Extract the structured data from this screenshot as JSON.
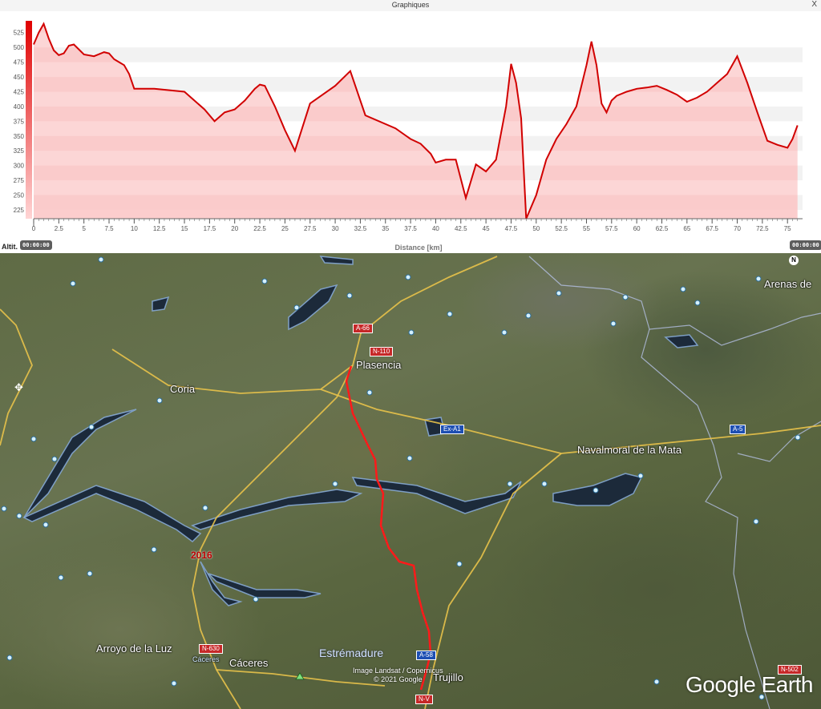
{
  "window": {
    "title": "Graphiques",
    "close_label": "X"
  },
  "chart_panel": {
    "y_axis_title": "Altit.",
    "start_time_chip": "00:00:00",
    "end_time_chip": "00:00:00"
  },
  "chart_data": {
    "type": "area",
    "title": "",
    "xlabel": "Distance [km]",
    "ylabel": "Altit.",
    "xlim": [
      0,
      76.5
    ],
    "ylim": [
      210,
      545
    ],
    "x_ticks": [
      0,
      2.5,
      5,
      7.5,
      10,
      12.5,
      15,
      17.5,
      20,
      22.5,
      25,
      27.5,
      30,
      32.5,
      35,
      37.5,
      40,
      42.5,
      45,
      47.5,
      50,
      52.5,
      55,
      57.5,
      60,
      62.5,
      65,
      67.5,
      70,
      72.5,
      75
    ],
    "y_ticks": [
      225,
      250,
      275,
      300,
      325,
      350,
      375,
      400,
      425,
      450,
      475,
      500,
      525
    ],
    "line_color": "#d10000",
    "fill_color": "#fbc4c4",
    "grid": true,
    "series": [
      {
        "x": [
          0,
          0.5,
          1,
          1.5,
          2,
          2.5,
          3,
          3.5,
          4,
          5,
          6,
          7,
          7.5,
          8,
          8.5,
          9,
          9.5,
          10,
          12,
          15,
          17,
          18,
          19,
          20,
          21,
          22,
          22.5,
          23,
          24,
          25,
          26,
          27.5,
          30,
          31.5,
          33,
          36,
          37.5,
          38.5,
          39.5,
          40,
          41,
          42,
          43,
          44,
          45,
          46,
          47,
          47.5,
          48,
          48.5,
          49,
          50,
          51,
          52,
          53,
          54,
          55,
          55.5,
          56,
          56.5,
          57,
          57.5,
          58,
          59,
          60,
          61,
          62,
          63,
          64,
          65,
          66,
          67,
          68,
          69,
          70,
          71,
          72,
          73,
          74,
          75,
          75.5,
          76
        ],
        "y": [
          505,
          525,
          540,
          515,
          495,
          487,
          490,
          503,
          505,
          488,
          485,
          492,
          490,
          480,
          475,
          470,
          455,
          430,
          430,
          425,
          395,
          375,
          390,
          395,
          410,
          430,
          437,
          435,
          400,
          360,
          325,
          405,
          435,
          460,
          385,
          363,
          345,
          337,
          320,
          305,
          310,
          310,
          245,
          302,
          290,
          310,
          400,
          472,
          440,
          380,
          210,
          250,
          310,
          345,
          370,
          400,
          470,
          510,
          470,
          405,
          390,
          410,
          418,
          425,
          430,
          432,
          435,
          428,
          420,
          408,
          415,
          425,
          440,
          455,
          485,
          440,
          390,
          342,
          335,
          330,
          345,
          368
        ]
      }
    ]
  },
  "map": {
    "towns": {
      "plasencia": "Plasencia",
      "coria": "Coria",
      "navalmoral": "Navalmoral de la Mata",
      "arenas": "Arenas de",
      "arroyo": "Arroyo de la Luz",
      "caceres": "Cáceres",
      "caceres_small": "Cáceres",
      "estremadure": "Estrémadure",
      "trujillo": "Trujillo"
    },
    "roads": {
      "a66": "A-66",
      "n110": "N-110",
      "exa1": "Ex-A1",
      "a5": "A-5",
      "n630": "N-630",
      "a58": "A-58",
      "nv": "N-V",
      "n502": "N-502"
    },
    "year_label": "2016",
    "credit_line1": "Image Landsat / Copernicus",
    "credit_line2": "© 2021 Google",
    "brand": "Google Earth",
    "compass_label": "N",
    "route_color": "#ff1a1a"
  }
}
